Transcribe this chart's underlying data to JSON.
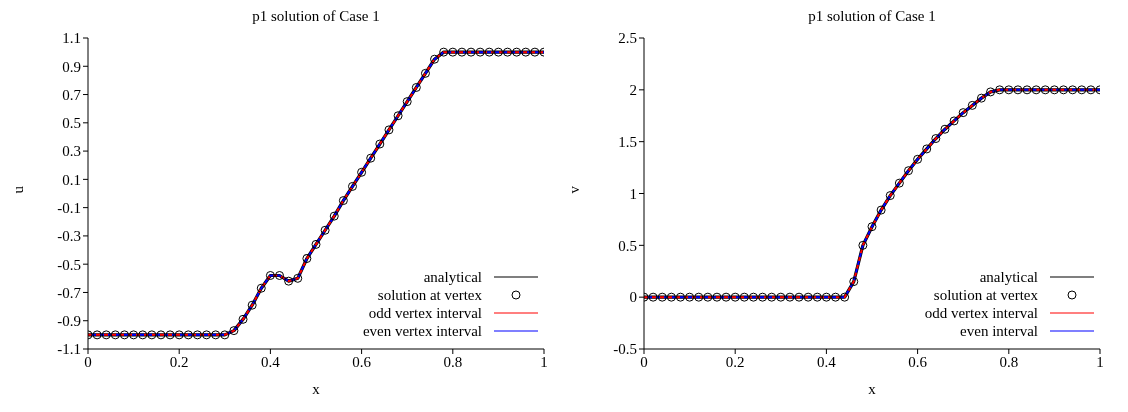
{
  "chart_data": [
    {
      "type": "line",
      "title": "p1 solution of Case 1",
      "xlabel": "x",
      "ylabel": "u",
      "marker": "none",
      "xlim": [
        0,
        1
      ],
      "xticks": [
        0,
        0.2,
        0.4,
        0.6,
        0.8,
        1
      ],
      "ylim": [
        -1.1,
        1.1
      ],
      "yticks": [
        -1.1,
        -0.9,
        -0.7,
        -0.5,
        -0.3,
        -0.1,
        0.1,
        0.3,
        0.5,
        0.7,
        0.9,
        1.1
      ],
      "grid": false,
      "legend": "bottom right",
      "x": [
        0,
        0.02,
        0.04,
        0.06,
        0.08,
        0.1,
        0.12,
        0.14,
        0.16,
        0.18,
        0.2,
        0.22,
        0.24,
        0.26,
        0.28,
        0.3,
        0.32,
        0.34,
        0.36,
        0.38,
        0.4,
        0.42,
        0.44,
        0.46,
        0.48,
        0.5,
        0.52,
        0.54,
        0.56,
        0.58,
        0.6,
        0.62,
        0.64,
        0.66,
        0.68,
        0.7,
        0.72,
        0.74,
        0.76,
        0.78,
        0.8,
        0.82,
        0.84,
        0.86,
        0.88,
        0.9,
        0.92,
        0.94,
        0.96,
        0.98,
        1
      ],
      "series": [
        {
          "name": "analytical",
          "color": "#000000",
          "values": [
            -1,
            -1,
            -1,
            -1,
            -1,
            -1,
            -1,
            -1,
            -1,
            -1,
            -1,
            -1,
            -1,
            -1,
            -1,
            -1,
            -0.97,
            -0.89,
            -0.79,
            -0.67,
            -0.58,
            -0.58,
            -0.62,
            -0.6,
            -0.46,
            -0.36,
            -0.26,
            -0.16,
            -0.05,
            0.05,
            0.15,
            0.25,
            0.35,
            0.45,
            0.55,
            0.65,
            0.75,
            0.85,
            0.95,
            1,
            1,
            1,
            1,
            1,
            1,
            1,
            1,
            1,
            1,
            1,
            1
          ]
        },
        {
          "name": "solution at vertex",
          "type": "scatter",
          "color": "#000000",
          "marker": "circle",
          "values": [
            -1,
            -1,
            -1,
            -1,
            -1,
            -1,
            -1,
            -1,
            -1,
            -1,
            -1,
            -1,
            -1,
            -1,
            -1,
            -1,
            -0.97,
            -0.89,
            -0.79,
            -0.67,
            -0.58,
            -0.58,
            -0.62,
            -0.6,
            -0.46,
            -0.36,
            -0.26,
            -0.16,
            -0.05,
            0.05,
            0.15,
            0.25,
            0.35,
            0.45,
            0.55,
            0.65,
            0.75,
            0.85,
            0.95,
            1,
            1,
            1,
            1,
            1,
            1,
            1,
            1,
            1,
            1,
            1,
            1
          ]
        },
        {
          "name": "odd vertex interval",
          "color": "#ff0000",
          "line_style": "dashed",
          "values": [
            -1,
            -1,
            -1,
            -1,
            -1,
            -1,
            -1,
            -1,
            -1,
            -1,
            -1,
            -1,
            -1,
            -1,
            -1,
            -1,
            -0.97,
            -0.89,
            -0.79,
            -0.67,
            -0.58,
            -0.58,
            -0.62,
            -0.6,
            -0.46,
            -0.36,
            -0.26,
            -0.16,
            -0.05,
            0.05,
            0.15,
            0.25,
            0.35,
            0.45,
            0.55,
            0.65,
            0.75,
            0.85,
            0.95,
            1,
            1,
            1,
            1,
            1,
            1,
            1,
            1,
            1,
            1,
            1,
            1
          ]
        },
        {
          "name": "even vertex interval",
          "color": "#0000ff",
          "line_style": "dashed",
          "values": [
            -1,
            -1,
            -1,
            -1,
            -1,
            -1,
            -1,
            -1,
            -1,
            -1,
            -1,
            -1,
            -1,
            -1,
            -1,
            -1,
            -0.97,
            -0.89,
            -0.79,
            -0.67,
            -0.58,
            -0.58,
            -0.62,
            -0.6,
            -0.46,
            -0.36,
            -0.26,
            -0.16,
            -0.05,
            0.05,
            0.15,
            0.25,
            0.35,
            0.45,
            0.55,
            0.65,
            0.75,
            0.85,
            0.95,
            1,
            1,
            1,
            1,
            1,
            1,
            1,
            1,
            1,
            1,
            1,
            1
          ]
        }
      ]
    },
    {
      "type": "line",
      "title": "p1 solution of Case 1",
      "xlabel": "x",
      "ylabel": "v",
      "marker": "none",
      "xlim": [
        0,
        1
      ],
      "xticks": [
        0,
        0.2,
        0.4,
        0.6,
        0.8,
        1
      ],
      "ylim": [
        -0.5,
        2.5
      ],
      "yticks": [
        -0.5,
        0,
        0.5,
        1,
        1.5,
        2,
        2.5
      ],
      "grid": false,
      "legend": "bottom right",
      "x": [
        0,
        0.02,
        0.04,
        0.06,
        0.08,
        0.1,
        0.12,
        0.14,
        0.16,
        0.18,
        0.2,
        0.22,
        0.24,
        0.26,
        0.28,
        0.3,
        0.32,
        0.34,
        0.36,
        0.38,
        0.4,
        0.42,
        0.44,
        0.46,
        0.48,
        0.5,
        0.52,
        0.54,
        0.56,
        0.58,
        0.6,
        0.62,
        0.64,
        0.66,
        0.68,
        0.7,
        0.72,
        0.74,
        0.76,
        0.78,
        0.8,
        0.82,
        0.84,
        0.86,
        0.88,
        0.9,
        0.92,
        0.94,
        0.96,
        0.98,
        1
      ],
      "series": [
        {
          "name": "analytical",
          "color": "#000000",
          "values": [
            0,
            0,
            0,
            0,
            0,
            0,
            0,
            0,
            0,
            0,
            0,
            0,
            0,
            0,
            0,
            0,
            0,
            0,
            0,
            0,
            0,
            0,
            0,
            0.15,
            0.5,
            0.68,
            0.84,
            0.98,
            1.1,
            1.22,
            1.33,
            1.43,
            1.53,
            1.62,
            1.7,
            1.78,
            1.85,
            1.92,
            1.98,
            2,
            2,
            2,
            2,
            2,
            2,
            2,
            2,
            2,
            2,
            2,
            2
          ]
        },
        {
          "name": "solution at vertex",
          "type": "scatter",
          "color": "#000000",
          "marker": "circle",
          "values": [
            0,
            0,
            0,
            0,
            0,
            0,
            0,
            0,
            0,
            0,
            0,
            0,
            0,
            0,
            0,
            0,
            0,
            0,
            0,
            0,
            0,
            0,
            0,
            0.15,
            0.5,
            0.68,
            0.84,
            0.98,
            1.1,
            1.22,
            1.33,
            1.43,
            1.53,
            1.62,
            1.7,
            1.78,
            1.85,
            1.92,
            1.98,
            2,
            2,
            2,
            2,
            2,
            2,
            2,
            2,
            2,
            2,
            2,
            2
          ]
        },
        {
          "name": "odd vertex interval",
          "color": "#ff0000",
          "line_style": "dashed",
          "values": [
            0,
            0,
            0,
            0,
            0,
            0,
            0,
            0,
            0,
            0,
            0,
            0,
            0,
            0,
            0,
            0,
            0,
            0,
            0,
            0,
            0,
            0,
            0,
            0.15,
            0.5,
            0.68,
            0.84,
            0.98,
            1.1,
            1.22,
            1.33,
            1.43,
            1.53,
            1.62,
            1.7,
            1.78,
            1.85,
            1.92,
            1.98,
            2,
            2,
            2,
            2,
            2,
            2,
            2,
            2,
            2,
            2,
            2,
            2
          ]
        },
        {
          "name": "even interval",
          "color": "#0000ff",
          "line_style": "dashed",
          "values": [
            0,
            0,
            0,
            0,
            0,
            0,
            0,
            0,
            0,
            0,
            0,
            0,
            0,
            0,
            0,
            0,
            0,
            0,
            0,
            0,
            0,
            0,
            0,
            0.15,
            0.5,
            0.68,
            0.84,
            0.98,
            1.1,
            1.22,
            1.33,
            1.43,
            1.53,
            1.62,
            1.7,
            1.78,
            1.85,
            1.92,
            1.98,
            2,
            2,
            2,
            2,
            2,
            2,
            2,
            2,
            2,
            2,
            2,
            2
          ]
        }
      ]
    }
  ]
}
